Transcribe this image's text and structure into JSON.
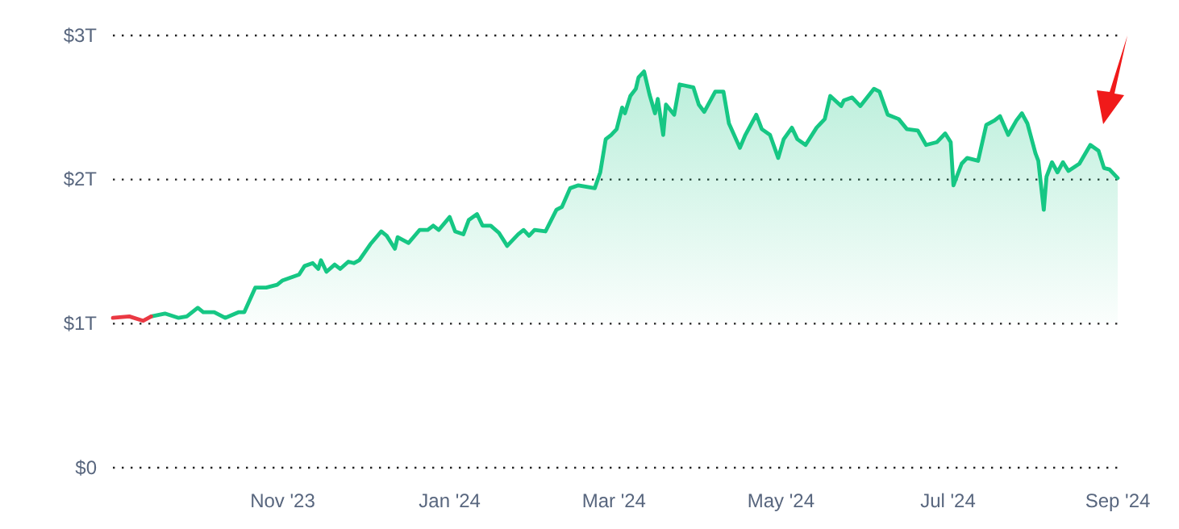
{
  "chart_data": {
    "type": "area",
    "ylim": [
      0,
      3
    ],
    "yticks": [
      {
        "value": 0,
        "label": "$0"
      },
      {
        "value": 1,
        "label": "$1T"
      },
      {
        "value": 2,
        "label": "$2T"
      },
      {
        "value": 3,
        "label": "$3T"
      }
    ],
    "xlim": [
      "2023-08-31",
      "2024-09-01"
    ],
    "xticks": [
      {
        "value": "2023-11-01",
        "label": "Nov '23"
      },
      {
        "value": "2024-01-01",
        "label": "Jan '24"
      },
      {
        "value": "2024-03-01",
        "label": "Mar '24"
      },
      {
        "value": "2024-05-01",
        "label": "May '24"
      },
      {
        "value": "2024-07-01",
        "label": "Jul '24"
      },
      {
        "value": "2024-09-01",
        "label": "Sep '24"
      }
    ],
    "grid": "y",
    "series": [
      {
        "color": "#16c784",
        "x": [
          "2023-09-14",
          "2023-09-19",
          "2023-09-24",
          "2023-09-27",
          "2023-10-01",
          "2023-10-03",
          "2023-10-07",
          "2023-10-11",
          "2023-10-16",
          "2023-10-18",
          "2023-10-22",
          "2023-10-26",
          "2023-10-30",
          "2023-11-01",
          "2023-11-07",
          "2023-11-09",
          "2023-11-12",
          "2023-11-14",
          "2023-11-15",
          "2023-11-17",
          "2023-11-20",
          "2023-11-22",
          "2023-11-25",
          "2023-11-27",
          "2023-11-29",
          "2023-12-03",
          "2023-12-07",
          "2023-12-09",
          "2023-12-12",
          "2023-12-13",
          "2023-12-17",
          "2023-12-21",
          "2023-12-24",
          "2023-12-26",
          "2023-12-28",
          "2024-01-01",
          "2024-01-03",
          "2024-01-06",
          "2024-01-08",
          "2024-01-11",
          "2024-01-13",
          "2024-01-16",
          "2024-01-19",
          "2024-01-22",
          "2024-01-26",
          "2024-01-28",
          "2024-01-30",
          "2024-02-01",
          "2024-02-05",
          "2024-02-09",
          "2024-02-11",
          "2024-02-14",
          "2024-02-17",
          "2024-02-23",
          "2024-02-25",
          "2024-02-27",
          "2024-02-29",
          "2024-03-02",
          "2024-03-04",
          "2024-03-05",
          "2024-03-07",
          "2024-03-09",
          "2024-03-10",
          "2024-03-12",
          "2024-03-14",
          "2024-03-16",
          "2024-03-17",
          "2024-03-19",
          "2024-03-20",
          "2024-03-23",
          "2024-03-25",
          "2024-03-30",
          "2024-04-01",
          "2024-04-03",
          "2024-04-07",
          "2024-04-10",
          "2024-04-12",
          "2024-04-16",
          "2024-04-18",
          "2024-04-22",
          "2024-04-24",
          "2024-04-27",
          "2024-04-30",
          "2024-05-02",
          "2024-05-05",
          "2024-05-07",
          "2024-05-10",
          "2024-05-14",
          "2024-05-17",
          "2024-05-19",
          "2024-05-23",
          "2024-05-24",
          "2024-05-27",
          "2024-05-30",
          "2024-06-04",
          "2024-06-06",
          "2024-06-09",
          "2024-06-13",
          "2024-06-16",
          "2024-06-20",
          "2024-06-23",
          "2024-06-27",
          "2024-06-30",
          "2024-07-02",
          "2024-07-03",
          "2024-07-06",
          "2024-07-08",
          "2024-07-12",
          "2024-07-15",
          "2024-07-18",
          "2024-07-20",
          "2024-07-23",
          "2024-07-26",
          "2024-07-28",
          "2024-07-30",
          "2024-08-02",
          "2024-08-03",
          "2024-08-05",
          "2024-08-06",
          "2024-08-08",
          "2024-08-10",
          "2024-08-12",
          "2024-08-14",
          "2024-08-18",
          "2024-08-22",
          "2024-08-25",
          "2024-08-27",
          "2024-08-29",
          "2024-09-01"
        ],
        "values": [
          1.05,
          1.07,
          1.04,
          1.05,
          1.11,
          1.08,
          1.08,
          1.04,
          1.08,
          1.08,
          1.25,
          1.25,
          1.27,
          1.3,
          1.34,
          1.4,
          1.42,
          1.38,
          1.44,
          1.36,
          1.41,
          1.38,
          1.43,
          1.42,
          1.44,
          1.55,
          1.64,
          1.61,
          1.52,
          1.6,
          1.56,
          1.65,
          1.65,
          1.68,
          1.65,
          1.74,
          1.64,
          1.62,
          1.72,
          1.76,
          1.68,
          1.68,
          1.63,
          1.54,
          1.62,
          1.65,
          1.61,
          1.65,
          1.64,
          1.79,
          1.81,
          1.94,
          1.96,
          1.94,
          2.05,
          2.28,
          2.31,
          2.35,
          2.5,
          2.46,
          2.58,
          2.63,
          2.71,
          2.75,
          2.59,
          2.46,
          2.56,
          2.31,
          2.52,
          2.45,
          2.66,
          2.64,
          2.52,
          2.47,
          2.61,
          2.61,
          2.39,
          2.22,
          2.31,
          2.45,
          2.35,
          2.31,
          2.15,
          2.28,
          2.36,
          2.28,
          2.24,
          2.36,
          2.42,
          2.58,
          2.51,
          2.55,
          2.57,
          2.51,
          2.63,
          2.61,
          2.45,
          2.42,
          2.35,
          2.34,
          2.24,
          2.26,
          2.32,
          2.26,
          1.96,
          2.11,
          2.15,
          2.13,
          2.38,
          2.41,
          2.44,
          2.31,
          2.41,
          2.46,
          2.39,
          2.18,
          2.13,
          1.79,
          2.02,
          2.12,
          2.05,
          2.12,
          2.06,
          2.11,
          2.24,
          2.2,
          2.08,
          2.07,
          2.01
        ]
      },
      {
        "type": "line",
        "color": "#ea3943",
        "x": [
          "2023-08-31",
          "2023-09-06",
          "2023-09-11",
          "2023-09-14"
        ],
        "values": [
          1.04,
          1.05,
          1.02,
          1.05
        ]
      }
    ]
  }
}
